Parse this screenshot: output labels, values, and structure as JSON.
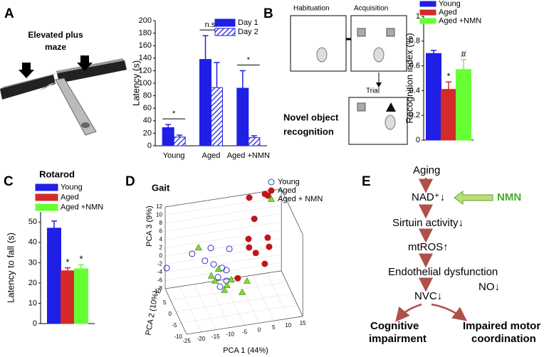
{
  "panel_labels": [
    "A",
    "B",
    "C",
    "D",
    "E"
  ],
  "maze_label": [
    "Elevated plus",
    "maze"
  ],
  "nor": {
    "stages": [
      "Habituation",
      "Acquisition",
      "Trial"
    ],
    "label": [
      "Novel object",
      "recognition"
    ]
  },
  "chart_data": [
    {
      "type": "bar",
      "ylabel": "Latency (s)",
      "categories": [
        "Young",
        "Aged",
        "Aged +NMN"
      ],
      "series": [
        {
          "name": "Day 1",
          "color": "#1f1fe6",
          "values": [
            29,
            138,
            92
          ],
          "errors": [
            5,
            38,
            28
          ]
        },
        {
          "name": "Day 2",
          "color": "#1f1fe6",
          "hatch": true,
          "values": [
            14,
            93,
            13
          ],
          "errors": [
            3,
            40,
            3
          ]
        }
      ],
      "annotations": [
        "*",
        "n.s.",
        "*"
      ],
      "ylim": [
        0,
        200
      ],
      "yticks": [
        0,
        20,
        40,
        60,
        80,
        100,
        120,
        140,
        160,
        180,
        200
      ],
      "legend": "upper right"
    },
    {
      "type": "bar",
      "ylabel": "Recognition index (%)",
      "series": [
        {
          "name": "Young",
          "color": "#1f1fe6",
          "values": [
            0.7
          ],
          "errors": [
            0.025
          ]
        },
        {
          "name": "Aged",
          "color": "#d42a2a",
          "values": [
            0.41
          ],
          "errors": [
            0.06
          ]
        },
        {
          "name": "Aged +NMN",
          "color": "#66ff33",
          "values": [
            0.57
          ],
          "errors": [
            0.08
          ]
        }
      ],
      "annotations": [
        null,
        "*",
        "#"
      ],
      "ylim": [
        0,
        1
      ],
      "yticks": [
        0,
        0.2,
        0.4,
        0.6,
        0.8,
        1
      ],
      "legend": "top"
    },
    {
      "type": "bar",
      "title": "Rotarod",
      "ylabel": "Latency to fall (s)",
      "series": [
        {
          "name": "Young",
          "color": "#1f1fe6",
          "values": [
            47
          ],
          "errors": [
            3.5
          ]
        },
        {
          "name": "Aged",
          "color": "#d42a2a",
          "values": [
            26
          ],
          "errors": [
            1.5
          ]
        },
        {
          "name": "Aged +NMN",
          "color": "#66ff33",
          "values": [
            27
          ],
          "errors": [
            2
          ]
        }
      ],
      "annotations": [
        null,
        "*",
        "*"
      ],
      "ylim": [
        0,
        55
      ],
      "yticks": [
        0,
        10,
        20,
        30,
        40,
        50
      ],
      "legend": "top"
    },
    {
      "type": "scatter3d",
      "title": "Gait",
      "xlabel": "PCA 1 (44%)",
      "ylabel": "PCA 3 (9%)",
      "zlabel": "PCA 2 (10%)",
      "xlim": [
        -25,
        15
      ],
      "ylim": [
        -8,
        12
      ],
      "zlim": [
        -10,
        10
      ],
      "xticks": [
        -25,
        -20,
        -15,
        -10,
        -5,
        0,
        5,
        10,
        15
      ],
      "yticks": [
        -8,
        -6,
        -4,
        -2,
        0,
        2,
        4,
        6,
        8,
        10,
        12
      ],
      "zticks": [
        -10,
        -5,
        0,
        5,
        10
      ],
      "series": [
        {
          "name": "Young",
          "color": "#3333cc",
          "marker": "circle-open",
          "x": [
            -24.5,
            -19.4,
            -13.0,
            -6.6,
            -15.0,
            -12.0,
            -9.1,
            -7.6,
            -10.5,
            -7.6,
            -9.8
          ],
          "y": [
            -3.0,
            5.5,
            6.2,
            5.3,
            3.3,
            2.1,
            0.9,
            0.2,
            -1.2,
            -2.4,
            -3.6
          ],
          "z": [
            10,
            0,
            0,
            0,
            0,
            0,
            0,
            0,
            0,
            0,
            0
          ]
        },
        {
          "name": "Aged",
          "color": "#c0161b",
          "marker": "circle",
          "x": [
            0,
            0.2,
            2,
            3.2,
            8.6,
            9.6,
            6.6,
            7.1,
            2.5,
            5.6,
            -3.7
          ],
          "y": [
            7.0,
            4.9,
            11.7,
            12.3,
            12.6,
            12.1,
            6.6,
            4.3,
            3.3,
            0.3,
            -2.2
          ],
          "z": [
            0,
            0,
            0,
            8,
            8,
            8,
            0,
            0,
            0,
            0,
            0
          ]
        },
        {
          "name": "Aged + NMN",
          "color": "#7fdd2a",
          "marker": "triangle",
          "x": [
            -17.2,
            -10.3,
            -12.8,
            -11.5,
            -5.9,
            -7.4,
            -2.2,
            -8.3,
            -0.5
          ],
          "y": [
            6.8,
            0.8,
            -0.6,
            -2.0,
            -2.3,
            -3.5,
            -5.8,
            -4.6,
            -3.2
          ],
          "z": [
            0,
            0,
            0,
            0,
            0,
            0,
            0,
            0,
            0
          ]
        }
      ],
      "legend": "upper right"
    }
  ],
  "diagram": {
    "nodes": [
      "Aging",
      "NAD⁺↓",
      "Sirtuin activity↓",
      "mtROS↑",
      "Endothelial dysfunction",
      "NVC↓"
    ],
    "side": [
      "NMN",
      "NO↓"
    ],
    "outcomes": [
      [
        "Cognitive",
        "impairment"
      ],
      [
        "Impaired motor",
        "coordination"
      ]
    ]
  }
}
